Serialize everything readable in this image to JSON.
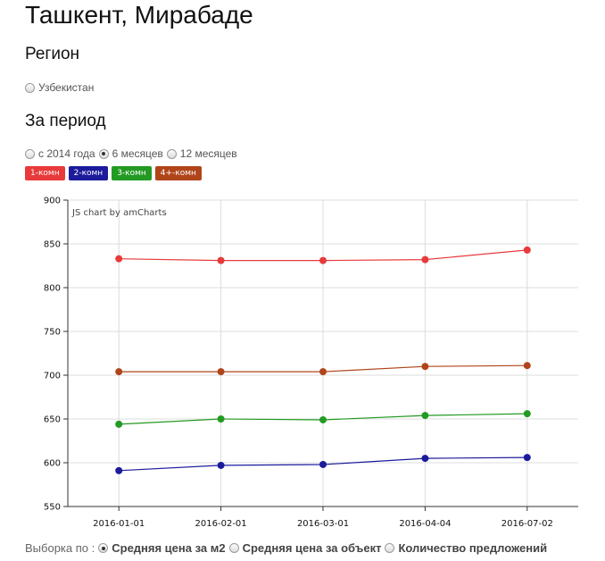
{
  "page": {
    "title": "Ташкент, Мирабаде",
    "region_heading": "Регион",
    "region_option": "Узбекистан",
    "period_heading": "За период",
    "period_options": [
      {
        "label": "с 2014 года",
        "checked": false
      },
      {
        "label": "6 месяцев",
        "checked": true
      },
      {
        "label": "12 месяцев",
        "checked": false
      }
    ],
    "legend": [
      {
        "label": "1-комн",
        "color": "#e83a3a"
      },
      {
        "label": "2-комн",
        "color": "#1b1b9c"
      },
      {
        "label": "3-комн",
        "color": "#239a23"
      },
      {
        "label": "4+-комн",
        "color": "#b0451a"
      }
    ],
    "selection_label": "Выборка по :",
    "selection_options": [
      {
        "label": "Средняя цена за м2",
        "checked": true
      },
      {
        "label": "Средняя цена за объект",
        "checked": false
      },
      {
        "label": "Количество предложений",
        "checked": false
      }
    ]
  },
  "chart_data": {
    "type": "line",
    "credit": "JS chart by amCharts",
    "categories": [
      "2016-01-01",
      "2016-02-01",
      "2016-03-01",
      "2016-04-04",
      "2016-07-02"
    ],
    "ylim": [
      550,
      900
    ],
    "yticks": [
      550,
      600,
      650,
      700,
      750,
      800,
      850,
      900
    ],
    "grid": true,
    "series": [
      {
        "name": "1-комн",
        "color": "#e83a3a",
        "values": [
          833,
          831,
          831,
          832,
          843
        ]
      },
      {
        "name": "2-комн",
        "color": "#1b1b9c",
        "values": [
          591,
          597,
          598,
          605,
          606
        ]
      },
      {
        "name": "3-комн",
        "color": "#239a23",
        "values": [
          644,
          650,
          649,
          654,
          656
        ]
      },
      {
        "name": "4+-комн",
        "color": "#b0451a",
        "values": [
          704,
          704,
          704,
          710,
          711
        ]
      }
    ]
  }
}
